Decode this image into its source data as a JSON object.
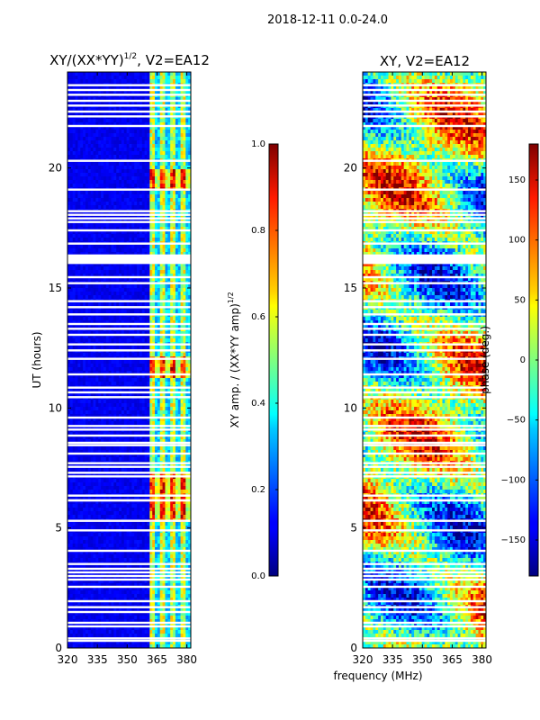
{
  "figure": {
    "suptitle": "2018-12-11 0.0-24.0",
    "shared_xlabel": "frequency (MHz)"
  },
  "chart_data": [
    {
      "type": "heatmap",
      "title_main": "XY/(XX*YY)",
      "title_sup": "1/2",
      "title_tail": ", V2=EA12",
      "ylabel": "UT (hours)",
      "xlim": [
        320,
        382
      ],
      "ylim": [
        0,
        24
      ],
      "xticks": [
        320,
        335,
        350,
        365,
        380
      ],
      "yticks": [
        0,
        5,
        10,
        15,
        20
      ],
      "colormap": "jet",
      "colorbar": {
        "label_main": "XY amp. / (XX*YY amp)",
        "label_sup": "1/2",
        "range": [
          0.0,
          1.0
        ],
        "ticks": [
          "0.0",
          "0.2",
          "0.4",
          "0.6",
          "0.8",
          "1.0"
        ],
        "tick_values": [
          0.0,
          0.2,
          0.4,
          0.6,
          0.8,
          1.0
        ]
      }
    },
    {
      "type": "heatmap",
      "title_main": "XY, V2=EA12",
      "xlim": [
        320,
        382
      ],
      "ylim": [
        0,
        24
      ],
      "xticks": [
        320,
        335,
        350,
        365,
        380
      ],
      "yticks": [
        0,
        5,
        10,
        15,
        20
      ],
      "colormap": "jet",
      "colorbar": {
        "label_main": "phase (deg.)",
        "range": [
          -180,
          180
        ],
        "ticks": [
          "−150",
          "−100",
          "−50",
          "0",
          "50",
          "100",
          "150"
        ],
        "tick_values": [
          -150,
          -100,
          -50,
          0,
          50,
          100,
          150
        ]
      }
    }
  ]
}
